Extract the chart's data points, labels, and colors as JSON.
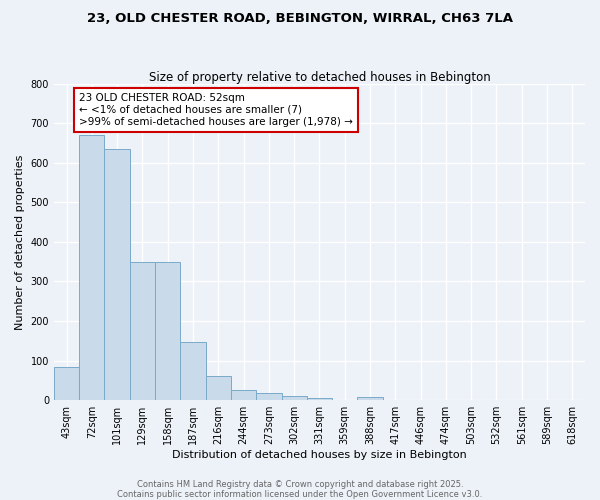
{
  "title_line1": "23, OLD CHESTER ROAD, BEBINGTON, WIRRAL, CH63 7LA",
  "title_line2": "Size of property relative to detached houses in Bebington",
  "xlabel": "Distribution of detached houses by size in Bebington",
  "ylabel": "Number of detached properties",
  "bar_color": "#c9daea",
  "bar_edge_color": "#7aaac8",
  "background_color": "#edf2f8",
  "grid_color": "#ffffff",
  "bins": [
    "43sqm",
    "72sqm",
    "101sqm",
    "129sqm",
    "158sqm",
    "187sqm",
    "216sqm",
    "244sqm",
    "273sqm",
    "302sqm",
    "331sqm",
    "359sqm",
    "388sqm",
    "417sqm",
    "446sqm",
    "474sqm",
    "503sqm",
    "532sqm",
    "561sqm",
    "589sqm",
    "618sqm"
  ],
  "values": [
    85,
    670,
    635,
    350,
    350,
    147,
    60,
    27,
    17,
    10,
    5,
    0,
    8,
    0,
    0,
    0,
    0,
    0,
    0,
    0,
    0
  ],
  "ylim": [
    0,
    800
  ],
  "yticks": [
    0,
    100,
    200,
    300,
    400,
    500,
    600,
    700,
    800
  ],
  "annotation_text": "23 OLD CHESTER ROAD: 52sqm\n← <1% of detached houses are smaller (7)\n>99% of semi-detached houses are larger (1,978) →",
  "annotation_box_color": "white",
  "annotation_box_edge": "#cc0000",
  "footer_line1": "Contains HM Land Registry data © Crown copyright and database right 2025.",
  "footer_line2": "Contains public sector information licensed under the Open Government Licence v3.0.",
  "title_fontsize": 9.5,
  "subtitle_fontsize": 8.5,
  "axis_label_fontsize": 8,
  "tick_fontsize": 7,
  "annotation_fontsize": 7.5,
  "footer_fontsize": 6
}
